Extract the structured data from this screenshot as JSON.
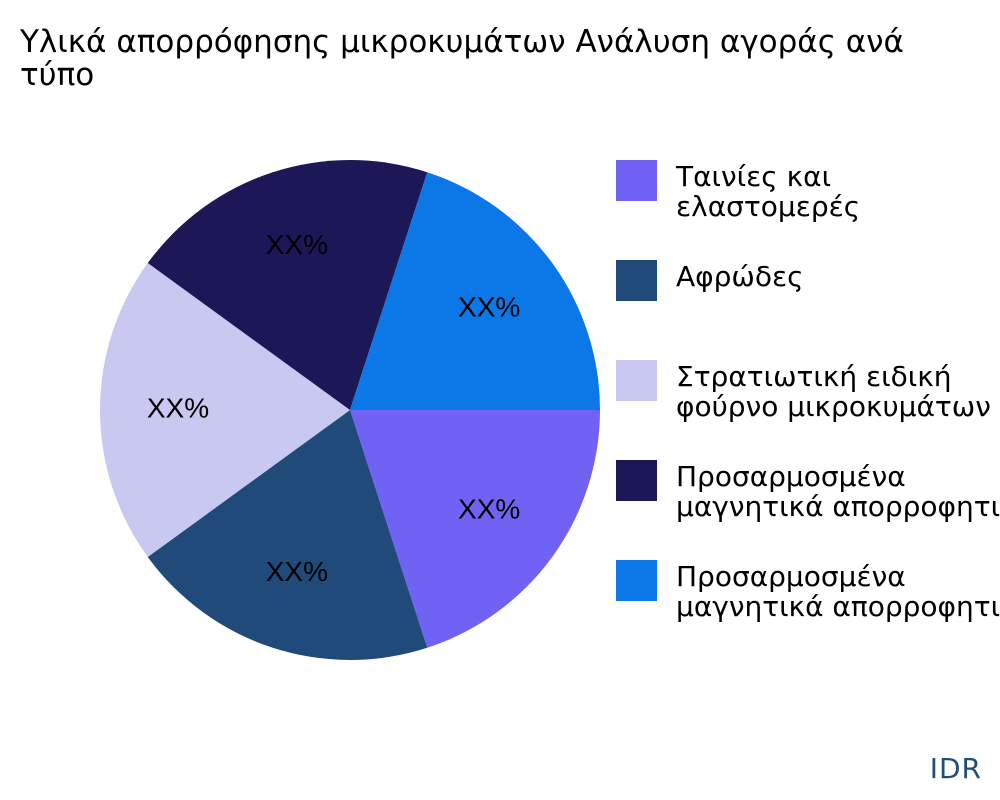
{
  "chart_data": {
    "type": "pie",
    "title_lines": [
      "Υλικά απορρόφησης μικροκυμάτων Ανάλυση αγοράς ανά",
      "τύπο"
    ],
    "slice_label": "XX%",
    "slices": [
      {
        "name_lines": [
          "Ταινίες και",
          "ελαστομερές"
        ],
        "value": 20,
        "color": "#7063f3"
      },
      {
        "name_lines": [
          "Αφρώδες"
        ],
        "value": 20,
        "color": "#1f4a7a"
      },
      {
        "name_lines": [
          "Στρατιωτική ειδική",
          "φούρνο μικροκυμάτων"
        ],
        "value": 20,
        "color": "#c9c8f0"
      },
      {
        "name_lines": [
          "Προσαρμοσμένα",
          "μαγνητικά απορροφητικά"
        ],
        "value": 20,
        "color": "#1c1757"
      },
      {
        "name_lines": [
          "Προσαρμοσμένα",
          "μαγνητικά απορροφητικά"
        ],
        "value": 20,
        "color": "#0c78e8"
      }
    ],
    "legend_position": "right"
  },
  "brand": "IDR"
}
